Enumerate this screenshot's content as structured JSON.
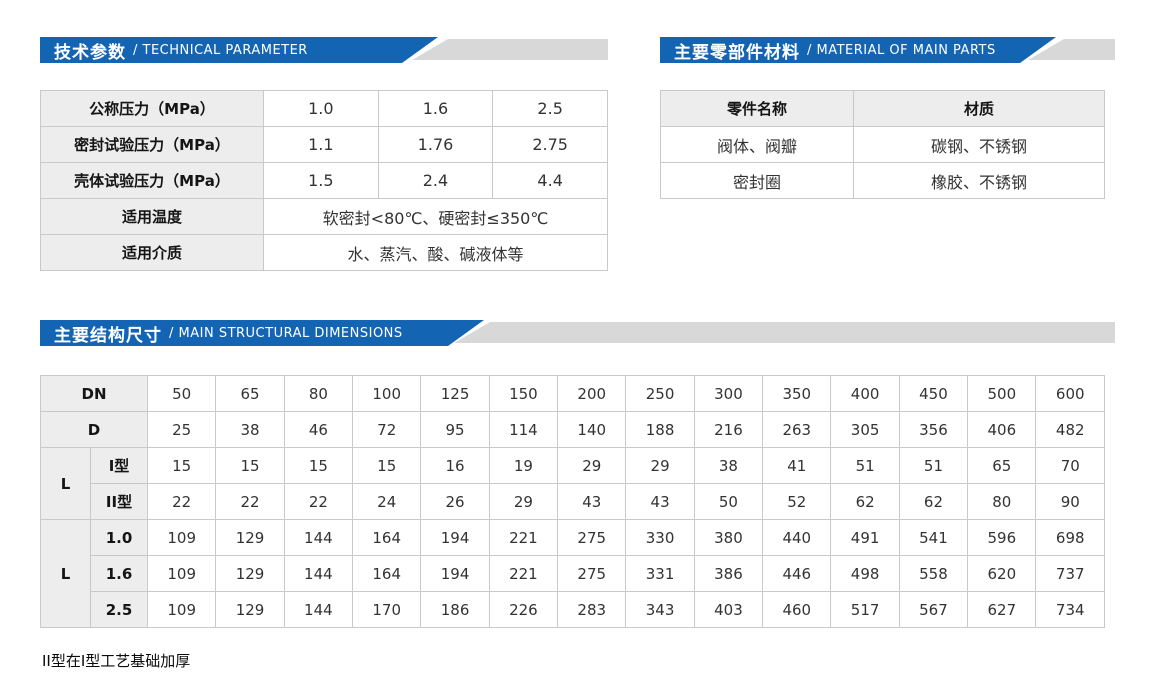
{
  "colors": {
    "banner_blue": "#1464b4",
    "banner_gray": "#d8d8d8",
    "label_cell_bg": "#ededed",
    "table_border": "#c9c9c9"
  },
  "sections": {
    "technical": {
      "title_zh": "技术参数",
      "title_en": "/ TECHNICAL PARAMETER"
    },
    "materials": {
      "title_zh": "主要零部件材料",
      "title_en": "/ MATERIAL OF MAIN PARTS"
    },
    "dimensions": {
      "title_zh": "主要结构尺寸",
      "title_en": "/ MAIN STRUCTURAL DIMENSIONS"
    }
  },
  "technical_table": {
    "rows": [
      {
        "label": "公称压力（MPa）",
        "values": [
          "1.0",
          "1.6",
          "2.5"
        ],
        "span": false
      },
      {
        "label": "密封试验压力（MPa）",
        "values": [
          "1.1",
          "1.76",
          "2.75"
        ],
        "span": false
      },
      {
        "label": "壳体试验压力（MPa）",
        "values": [
          "1.5",
          "2.4",
          "4.4"
        ],
        "span": false
      },
      {
        "label": "适用温度",
        "values": [
          "软密封<80℃、硬密封≤350℃"
        ],
        "span": true
      },
      {
        "label": "适用介质",
        "values": [
          "水、蒸汽、酸、碱液体等"
        ],
        "span": true
      }
    ]
  },
  "materials_table": {
    "headers": [
      "零件名称",
      "材质"
    ],
    "rows": [
      [
        "阀体、阀瓣",
        "碳钢、不锈钢"
      ],
      [
        "密封圈",
        "橡胶、不锈钢"
      ]
    ]
  },
  "dimensions_table": {
    "row_dn": {
      "label": "DN",
      "values": [
        "50",
        "65",
        "80",
        "100",
        "125",
        "150",
        "200",
        "250",
        "300",
        "350",
        "400",
        "450",
        "500",
        "600"
      ]
    },
    "row_d": {
      "label": "D",
      "values": [
        "25",
        "38",
        "46",
        "72",
        "95",
        "114",
        "140",
        "188",
        "216",
        "263",
        "305",
        "356",
        "406",
        "482"
      ]
    },
    "groups": [
      {
        "label": "L",
        "rows": [
          {
            "label": "I型",
            "values": [
              "15",
              "15",
              "15",
              "15",
              "16",
              "19",
              "29",
              "29",
              "38",
              "41",
              "51",
              "51",
              "65",
              "70"
            ]
          },
          {
            "label": "II型",
            "values": [
              "22",
              "22",
              "22",
              "24",
              "26",
              "29",
              "43",
              "43",
              "50",
              "52",
              "62",
              "62",
              "80",
              "90"
            ]
          }
        ]
      },
      {
        "label": "L",
        "rows": [
          {
            "label": "1.0",
            "values": [
              "109",
              "129",
              "144",
              "164",
              "194",
              "221",
              "275",
              "330",
              "380",
              "440",
              "491",
              "541",
              "596",
              "698"
            ]
          },
          {
            "label": "1.6",
            "values": [
              "109",
              "129",
              "144",
              "164",
              "194",
              "221",
              "275",
              "331",
              "386",
              "446",
              "498",
              "558",
              "620",
              "737"
            ]
          },
          {
            "label": "2.5",
            "values": [
              "109",
              "129",
              "144",
              "170",
              "186",
              "226",
              "283",
              "343",
              "403",
              "460",
              "517",
              "567",
              "627",
              "734"
            ]
          }
        ]
      }
    ]
  },
  "footnote": "II型在I型工艺基础加厚"
}
